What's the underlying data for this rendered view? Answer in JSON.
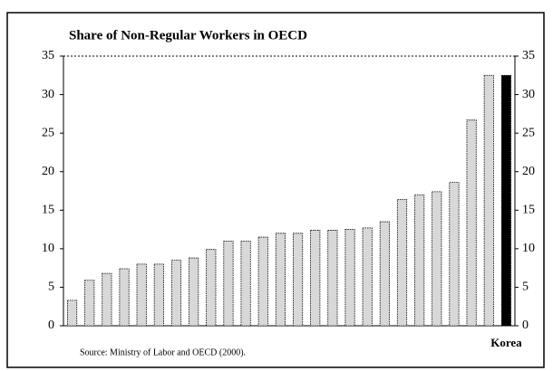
{
  "chart_data": {
    "type": "bar",
    "title": "Share of Non-Regular Workers in OECD",
    "note": "Source: Ministry of Labor and OECD (2000).",
    "categories": [
      null,
      null,
      null,
      null,
      null,
      null,
      null,
      null,
      null,
      null,
      null,
      null,
      null,
      null,
      null,
      null,
      null,
      null,
      null,
      null,
      null,
      null,
      null,
      null,
      null,
      "Korea"
    ],
    "values": [
      3.3,
      5.9,
      6.8,
      7.4,
      8.0,
      8.0,
      8.5,
      8.8,
      9.9,
      11.0,
      11.0,
      11.5,
      12.0,
      12.0,
      12.4,
      12.4,
      12.5,
      12.7,
      13.5,
      16.4,
      17.0,
      17.4,
      18.6,
      26.7,
      32.5,
      32.5
    ],
    "colors": [
      "#d8d8d8",
      "#d8d8d8",
      "#d8d8d8",
      "#d8d8d8",
      "#d8d8d8",
      "#d8d8d8",
      "#d8d8d8",
      "#d8d8d8",
      "#d8d8d8",
      "#d8d8d8",
      "#d8d8d8",
      "#d8d8d8",
      "#d8d8d8",
      "#d8d8d8",
      "#d8d8d8",
      "#d8d8d8",
      "#d8d8d8",
      "#d8d8d8",
      "#d8d8d8",
      "#d8d8d8",
      "#d8d8d8",
      "#d8d8d8",
      "#d8d8d8",
      "#d8d8d8",
      "#d8d8d8",
      "#000000"
    ],
    "ylim": [
      0,
      35
    ],
    "yticks": [
      0,
      5,
      10,
      15,
      20,
      25,
      30,
      35
    ],
    "y2lim": [
      0,
      35
    ],
    "y2ticks": [
      0,
      5,
      10,
      15,
      20,
      25,
      30,
      35
    ],
    "grid": false
  }
}
